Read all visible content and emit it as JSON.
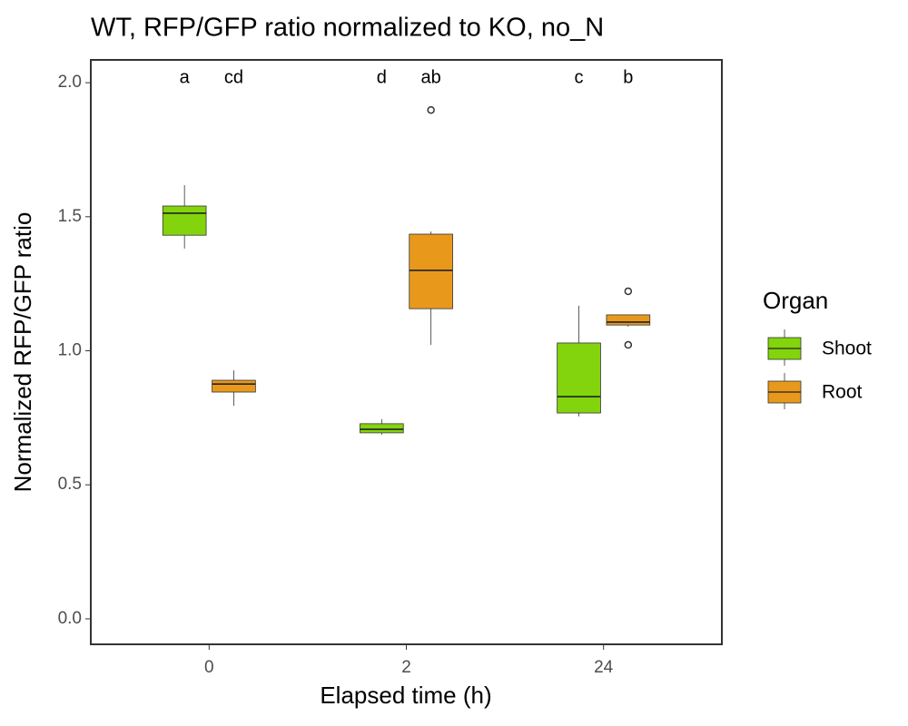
{
  "chart_data": {
    "type": "box",
    "title": "WT, RFP/GFP ratio normalized to KO, no_N",
    "x_label": "Elapsed time (h)",
    "y_label": "Normalized RFP/GFP ratio",
    "categories": [
      "0",
      "2",
      "24"
    ],
    "ylim": [
      -0.095,
      2.085
    ],
    "yticks": [
      {
        "value": 0,
        "label": "0.0"
      },
      {
        "value": 0.5,
        "label": "0.5"
      },
      {
        "value": 1,
        "label": "1.0"
      },
      {
        "value": 1.5,
        "label": "1.5"
      },
      {
        "value": 2,
        "label": "2.0"
      }
    ],
    "legend_title": "Organ",
    "legend_position": "right",
    "series": [
      {
        "name": "Shoot",
        "color": "#83d40c",
        "min": [
          1.381,
          0.687,
          0.755
        ],
        "q1": [
          1.431,
          0.694,
          0.768
        ],
        "median": [
          1.513,
          0.707,
          0.829
        ],
        "q3": [
          1.54,
          0.728,
          1.029
        ],
        "max": [
          1.618,
          0.745,
          1.168
        ],
        "outliers": [
          [],
          [],
          []
        ],
        "labels": [
          "a",
          "d",
          "c"
        ]
      },
      {
        "name": "Root",
        "color": "#e8991c",
        "min": [
          0.795,
          1.022,
          1.09
        ],
        "q1": [
          0.846,
          1.157,
          1.096
        ],
        "median": [
          0.876,
          1.3,
          1.107
        ],
        "q3": [
          0.89,
          1.435,
          1.134
        ],
        "max": [
          0.927,
          1.445,
          1.134
        ],
        "outliers": [
          [],
          [
            1.898
          ],
          [
            1.222,
            1.022
          ]
        ],
        "labels": [
          "cd",
          "ab",
          "b"
        ]
      }
    ]
  }
}
